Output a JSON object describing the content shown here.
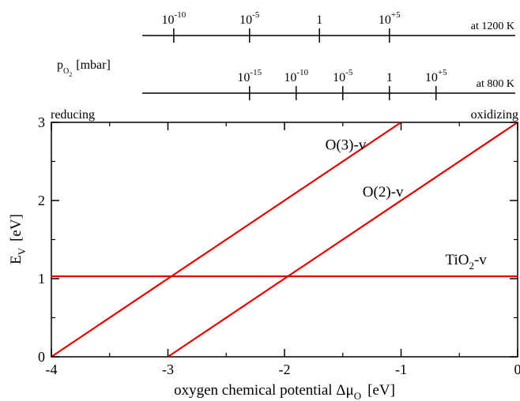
{
  "chart_data": {
    "type": "line",
    "xlabel": "oxygen chemical potential  Δμ",
    "xlabel_sub": "O",
    "xlabel_unit": "[eV]",
    "ylabel": "E",
    "ylabel_sub": "V",
    "ylabel_unit": "[eV]",
    "xlim": [
      -4,
      0
    ],
    "ylim": [
      0,
      3
    ],
    "x_ticks": [
      "-4",
      "-3",
      "-2",
      "-1",
      "0"
    ],
    "y_ticks": [
      "0",
      "1",
      "2",
      "3"
    ],
    "corner_left": "reducing",
    "corner_right": "oxidizing",
    "series_color": "#e00000",
    "series": [
      {
        "name": "O(3)-v",
        "label_main": "O(3)-v",
        "label_sub": "",
        "label_suffix": "",
        "label_at": [
          -1.65,
          2.65
        ],
        "points": [
          [
            -4,
            0
          ],
          [
            -1,
            3
          ]
        ]
      },
      {
        "name": "O(2)-v",
        "label_main": "O(2)-v",
        "label_sub": "",
        "label_suffix": "",
        "label_at": [
          -1.33,
          2.05
        ],
        "points": [
          [
            -3,
            0
          ],
          [
            0,
            3
          ]
        ]
      },
      {
        "name": "TiO2-v",
        "label_main": "TiO",
        "label_sub": "2",
        "label_suffix": "-v",
        "label_at": [
          -0.62,
          1.18
        ],
        "points": [
          [
            -4,
            1.03
          ],
          [
            0,
            1.03
          ]
        ]
      }
    ],
    "pressure_label_main": "p",
    "pressure_label_sub": "O",
    "pressure_label_subsub": "2",
    "pressure_label_unit": "[mbar]",
    "pressure_axes": [
      {
        "name": "at 1200 K",
        "temperature": "at 1200 K",
        "ticks": [
          {
            "label": "10",
            "exp": "-10",
            "mu": -2.95
          },
          {
            "label": "10",
            "exp": "-5",
            "mu": -2.3
          },
          {
            "label": "1",
            "exp": "",
            "mu": -1.7
          },
          {
            "label": "10",
            "exp": "+5",
            "mu": -1.1
          }
        ]
      },
      {
        "name": "at 800 K",
        "temperature": "at 800 K",
        "ticks": [
          {
            "label": "10",
            "exp": "-15",
            "mu": -2.3
          },
          {
            "label": "10",
            "exp": "-10",
            "mu": -1.9
          },
          {
            "label": "10",
            "exp": "-5",
            "mu": -1.5
          },
          {
            "label": "1",
            "exp": "",
            "mu": -1.1
          },
          {
            "label": "10",
            "exp": "+5",
            "mu": -0.7
          }
        ]
      }
    ]
  }
}
